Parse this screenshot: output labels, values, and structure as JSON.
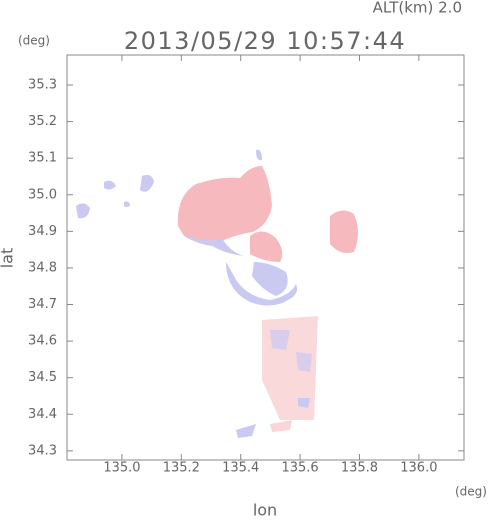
{
  "chart_data": {
    "type": "map",
    "title": "2013/05/29 10:57:44",
    "subtitle": "ALT(km) 2.0",
    "x_label": "lon",
    "y_label": "lat",
    "x_unit": "(deg)",
    "y_unit": "(deg)",
    "xlim": [
      134.815,
      136.152
    ],
    "ylim": [
      34.275,
      35.382
    ],
    "xticks": [
      {
        "value": 135,
        "label": "135.0"
      },
      135.2,
      135.4,
      135.6,
      135.8,
      {
        "value": 136,
        "label": "136.0"
      }
    ],
    "yticks": [
      34.3,
      34.4,
      34.5,
      34.6,
      34.7,
      34.8,
      34.9,
      {
        "value": 35,
        "label": "35.0"
      },
      35.1,
      35.2,
      35.3
    ]
  }
}
